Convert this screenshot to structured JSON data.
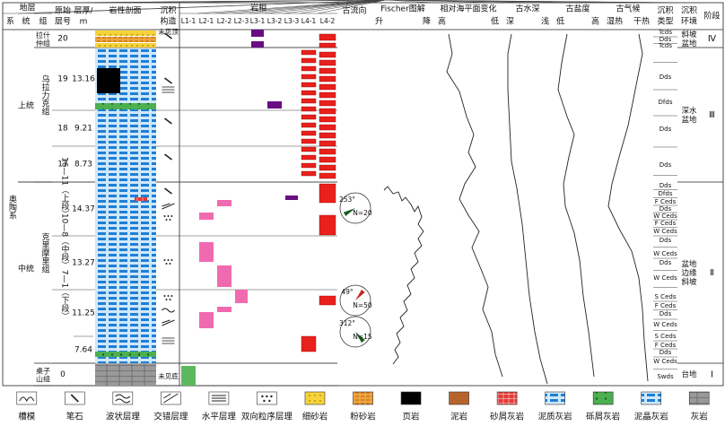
{
  "header": {
    "strata": "地层",
    "system": "系",
    "series": "统",
    "formation": "组",
    "layer_no": [
      "原始",
      "层号"
    ],
    "thickness": [
      "层厚/",
      "m"
    ],
    "lithology": "岩性剖面",
    "structure": [
      "沉积",
      "构造"
    ],
    "facies": "岩相",
    "facies_cols": [
      "L1-1",
      "L2-1",
      "L2-2",
      "L2-3",
      "L3-1",
      "L3-2",
      "L3-3",
      "L4-1",
      "L4-2"
    ],
    "paleocurrent": "古流向",
    "fischer": "Fischer图解",
    "fischer_ends": [
      "升",
      "降"
    ],
    "sea_level": "相对海平面变化",
    "sea_level_ends": [
      "高",
      "低"
    ],
    "water_depth": "古水深",
    "water_depth_ends": [
      "深",
      "浅"
    ],
    "salinity": "古盐度",
    "salinity_ends": [
      "低",
      "高"
    ],
    "climate": "古气候",
    "climate_ends": [
      "湿热",
      "干热"
    ],
    "dep_type": [
      "沉积",
      "类型"
    ],
    "dep_env": [
      "沉积",
      "环境"
    ],
    "stage": "阶段"
  },
  "system": "奥陶系",
  "series": [
    "上统",
    "中统"
  ],
  "formations": [
    "拉什仲组",
    "乌拉力克组",
    "克里摩里组",
    "桌子山组"
  ],
  "layers": [
    "20",
    "19",
    "18",
    "17",
    "16—11（上段）",
    "10—8（中段）",
    "7—1（下段）",
    "0"
  ],
  "thickness": [
    "13.16",
    "9.21",
    "8.73",
    "14.37",
    "13.27",
    "11.25",
    "7.64"
  ],
  "structure_notes": [
    "未见顶",
    "未见底"
  ],
  "paleocurrent": [
    {
      "angle": "253°",
      "n": "N=20"
    },
    {
      "angle": "49°",
      "n": "N=50"
    },
    {
      "angle": "312°",
      "n": "N=15"
    }
  ],
  "dep_types": [
    "Tcds",
    "Dds",
    "Tcds",
    "Dds",
    "Dfds",
    "Dds",
    "Dds",
    "Dds",
    "Dfds",
    "F Ceds",
    "Dds",
    "W Ceds",
    "F Ceds",
    "W Ceds",
    "Dds",
    "W Ceds",
    "Dds",
    "W Ceds",
    "S Ceds",
    "F Ceds",
    "Dds",
    "W Ceds",
    "S Ceds",
    "F Ceds",
    "Dds",
    "W Ceds",
    "Swds"
  ],
  "environments": [
    "斜坡盆地",
    "深水盆地",
    "盆地边缘斜坡",
    "台地"
  ],
  "stages": [
    "Ⅳ",
    "Ⅲ",
    "Ⅱ",
    "Ⅰ"
  ],
  "legend": [
    "槽模",
    "笔石",
    "波状层理",
    "交错层理",
    "水平层理",
    "双向粒序层理",
    "细砂岩",
    "粉砂岩",
    "页岩",
    "泥岩",
    "砂屑灰岩",
    "泥质灰岩",
    "砾屑灰岩",
    "泥晶灰岩",
    "灰岩"
  ]
}
